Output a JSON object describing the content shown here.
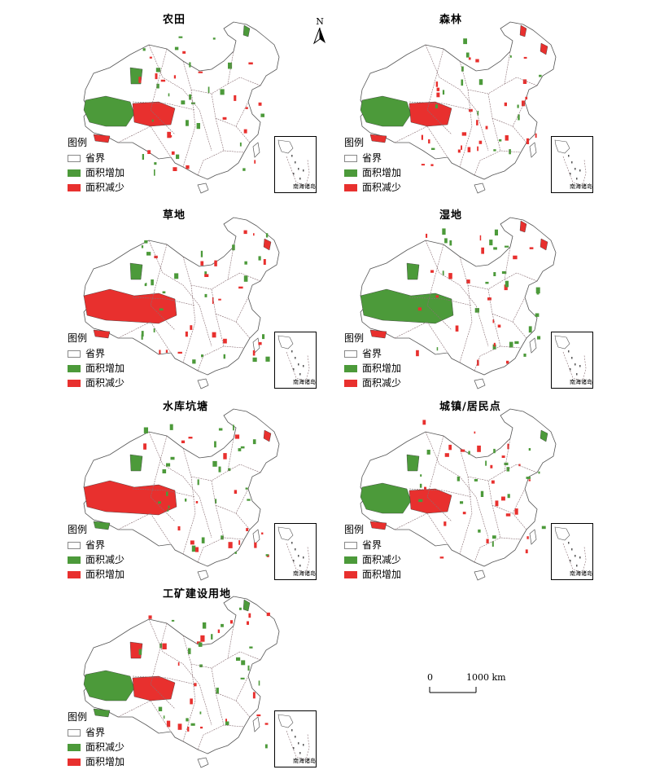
{
  "north_label": "N",
  "inset_label": "南海诸岛",
  "legend_title": "图例",
  "scale": {
    "zero": "0",
    "max": "1000 km"
  },
  "colors": {
    "increase_primary": "#4c9a3a",
    "decrease_primary": "#e8302e",
    "boundary": "#8a6f74",
    "outline": "#000000"
  },
  "panels": [
    {
      "title": "农田",
      "items": [
        {
          "label": "省界",
          "color": "#ffffff"
        },
        {
          "label": "面积增加",
          "color": "#4c9a3a"
        },
        {
          "label": "面积减少",
          "color": "#e8302e"
        }
      ]
    },
    {
      "title": "森林",
      "items": [
        {
          "label": "省界",
          "color": "#ffffff"
        },
        {
          "label": "面积增加",
          "color": "#4c9a3a"
        },
        {
          "label": "面积减少",
          "color": "#e8302e"
        }
      ]
    },
    {
      "title": "草地",
      "items": [
        {
          "label": "省界",
          "color": "#ffffff"
        },
        {
          "label": "面积增加",
          "color": "#4c9a3a"
        },
        {
          "label": "面积减少",
          "color": "#e8302e"
        }
      ]
    },
    {
      "title": "湿地",
      "items": [
        {
          "label": "省界",
          "color": "#ffffff"
        },
        {
          "label": "面积增加",
          "color": "#4c9a3a"
        },
        {
          "label": "面积减少",
          "color": "#e8302e"
        }
      ]
    },
    {
      "title": "水库坑塘",
      "items": [
        {
          "label": "省界",
          "color": "#ffffff"
        },
        {
          "label": "面积减少",
          "color": "#4c9a3a"
        },
        {
          "label": "面积增加",
          "color": "#e8302e"
        }
      ]
    },
    {
      "title": "城镇/居民点",
      "items": [
        {
          "label": "省界",
          "color": "#ffffff"
        },
        {
          "label": "面积减少",
          "color": "#4c9a3a"
        },
        {
          "label": "面积增加",
          "color": "#e8302e"
        }
      ]
    },
    {
      "title": "工矿建设用地",
      "items": [
        {
          "label": "省界",
          "color": "#ffffff"
        },
        {
          "label": "面积减少",
          "color": "#4c9a3a"
        },
        {
          "label": "面积增加",
          "color": "#e8302e"
        }
      ]
    }
  ]
}
